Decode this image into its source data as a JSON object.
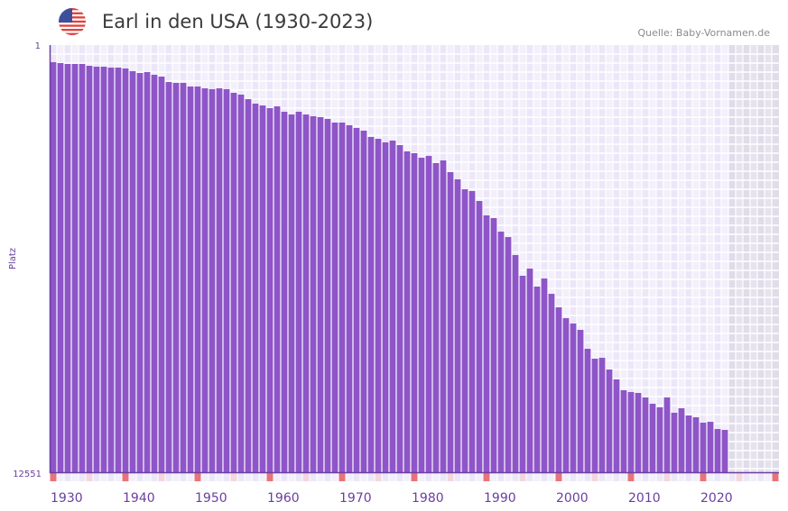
{
  "header": {
    "title": "Earl in den USA (1930-2023)",
    "source": "Quelle: Baby-Vornamen.de",
    "flag_icon": "usa-flag-icon"
  },
  "colors": {
    "bar": "#8e55c8",
    "axis": "#6a3fa0",
    "decade_marker": "#e8737a",
    "half_decade_marker": "#f4d6de",
    "future_region": "#e4e0ec"
  },
  "chart_data": {
    "type": "bar",
    "title": "Earl in den USA (1930-2023)",
    "xlabel": "",
    "ylabel": "Platz",
    "y_axis_inverted": true,
    "ylim": [
      1,
      12551
    ],
    "y_tick_labels": [
      "1",
      "12551"
    ],
    "xlim": [
      1930,
      2030
    ],
    "x_tick_labels": [
      "1930",
      "1940",
      "1950",
      "1960",
      "1970",
      "1980",
      "1990",
      "2000",
      "2010",
      "2020"
    ],
    "grid": true,
    "years": [
      1930,
      1931,
      1932,
      1933,
      1934,
      1935,
      1936,
      1937,
      1938,
      1939,
      1940,
      1941,
      1942,
      1943,
      1944,
      1945,
      1946,
      1947,
      1948,
      1949,
      1950,
      1951,
      1952,
      1953,
      1954,
      1955,
      1956,
      1957,
      1958,
      1959,
      1960,
      1961,
      1962,
      1963,
      1964,
      1965,
      1966,
      1967,
      1968,
      1969,
      1970,
      1971,
      1972,
      1973,
      1974,
      1975,
      1976,
      1977,
      1978,
      1979,
      1980,
      1981,
      1982,
      1983,
      1984,
      1985,
      1986,
      1987,
      1988,
      1989,
      1990,
      1991,
      1992,
      1993,
      1994,
      1995,
      1996,
      1997,
      1998,
      1999,
      2000,
      2001,
      2002,
      2003,
      2004,
      2005,
      2006,
      2007,
      2008,
      2009,
      2010,
      2011,
      2012,
      2013,
      2014,
      2015,
      2016,
      2017,
      2018,
      2019,
      2020,
      2021,
      2022,
      2023
    ],
    "values": [
      504,
      531,
      557,
      557,
      557,
      610,
      636,
      636,
      663,
      663,
      689,
      769,
      822,
      795,
      875,
      928,
      1087,
      1113,
      1113,
      1219,
      1219,
      1272,
      1298,
      1272,
      1298,
      1404,
      1457,
      1590,
      1722,
      1775,
      1854,
      1801,
      1960,
      2040,
      1960,
      2040,
      2093,
      2119,
      2172,
      2278,
      2278,
      2357,
      2437,
      2516,
      2702,
      2755,
      2860,
      2807,
      2940,
      3125,
      3178,
      3311,
      3258,
      3469,
      3390,
      3734,
      3946,
      4237,
      4290,
      4582,
      5005,
      5085,
      5482,
      5641,
      6170,
      6779,
      6568,
      7097,
      6859,
      7309,
      7706,
      8024,
      8182,
      8368,
      8924,
      9215,
      9188,
      9533,
      9824,
      10141,
      10194,
      10221,
      10353,
      10538,
      10644,
      10353,
      10803,
      10671,
      10883,
      10936,
      11095,
      11069,
      11281,
      11307
    ]
  }
}
